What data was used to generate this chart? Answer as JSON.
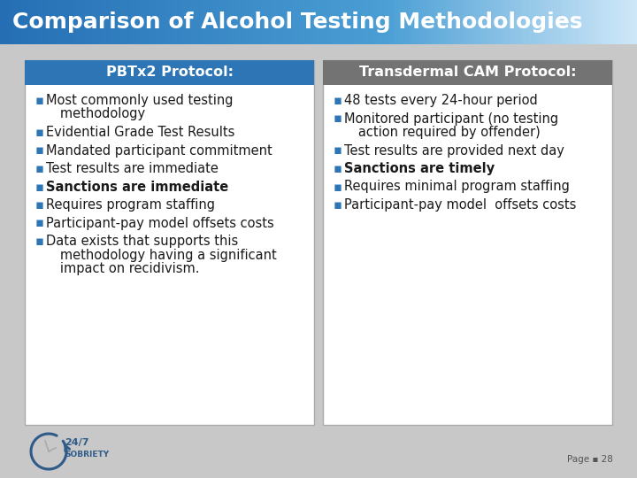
{
  "title": "Comparison of Alcohol Testing Methodologies",
  "title_text_color": "#ffffff",
  "title_font_size": 18,
  "bg_color": "#c8c8c8",
  "table_bg": "#ffffff",
  "table_border": "#aaaaaa",
  "left_header": "PBTx2 Protocol:",
  "right_header": "Transdermal CAM Protocol:",
  "left_header_bg": "#2e75b6",
  "right_header_bg": "#737373",
  "header_text_color": "#ffffff",
  "bullet_color": "#2e75b6",
  "text_color": "#1a1a1a",
  "left_items": [
    {
      "text": "Most commonly used testing\n   methodology",
      "bold": false
    },
    {
      "text": "Evidential Grade Test Results",
      "bold": false
    },
    {
      "text": "Mandated participant commitment",
      "bold": false
    },
    {
      "text": "Test results are immediate",
      "bold": false
    },
    {
      "text": "Sanctions are immediate",
      "bold": true
    },
    {
      "text": "Requires program staffing",
      "bold": false
    },
    {
      "text": "Participant-pay model offsets costs",
      "bold": false
    },
    {
      "text": "Data exists that supports this\n   methodology having a significant\n   impact on recidivism.",
      "bold": false
    }
  ],
  "right_items": [
    {
      "text": "48 tests every 24-hour period",
      "bold": false
    },
    {
      "text": "Monitored participant (no testing\n   action required by offender)",
      "bold": false
    },
    {
      "text": "Test results are provided next day",
      "bold": false
    },
    {
      "text": "Sanctions are timely",
      "bold": true
    },
    {
      "text": "Requires minimal program staffing",
      "bold": false
    },
    {
      "text": "Participant-pay model  offsets costs",
      "bold": false
    }
  ],
  "footer_text": "Page ▪ 28",
  "font_size": 10.5,
  "header_font_size": 11.5
}
